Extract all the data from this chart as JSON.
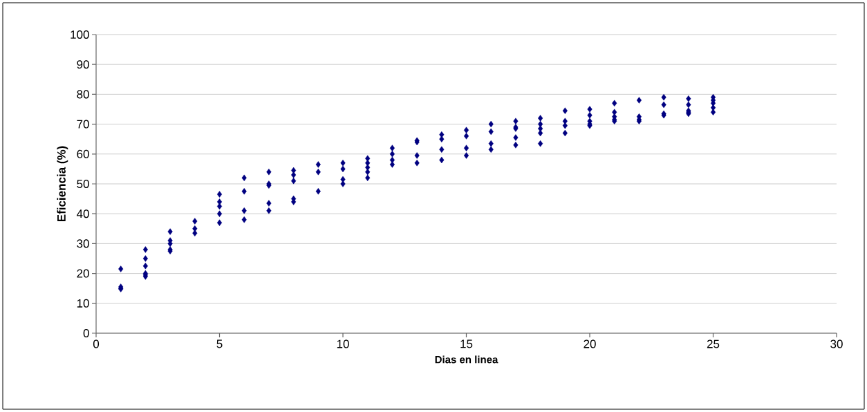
{
  "chart_data": {
    "type": "scatter",
    "xlabel": "Dias en linea",
    "ylabel": "Eficiencia (%)",
    "xlim": [
      0,
      30
    ],
    "xticks": [
      0,
      5,
      10,
      15,
      20,
      25,
      30
    ],
    "ylim": [
      0,
      100
    ],
    "yticks": [
      0,
      10,
      20,
      30,
      40,
      50,
      60,
      70,
      80,
      90,
      100
    ],
    "grid": "y",
    "marker": "diamond",
    "series": [
      {
        "color": "#000080",
        "x": [
          1,
          1,
          1,
          1,
          2,
          2,
          2,
          2,
          2,
          2,
          3,
          3,
          3,
          3,
          3,
          4,
          4,
          4,
          5,
          5,
          5,
          5,
          5,
          6,
          6,
          6,
          6,
          7,
          7,
          7,
          7,
          7,
          8,
          8,
          8,
          8,
          8,
          9,
          9,
          9,
          10,
          10,
          10,
          10,
          11,
          11,
          11,
          11,
          11,
          12,
          12,
          12,
          12,
          13,
          13,
          13,
          13,
          14,
          14,
          14,
          14,
          15,
          15,
          15,
          15,
          16,
          16,
          16,
          16,
          17,
          17,
          17,
          17,
          17,
          18,
          18,
          18,
          18,
          18,
          19,
          19,
          19,
          19,
          20,
          20,
          20,
          20,
          20,
          21,
          21,
          21,
          21,
          21,
          22,
          22,
          22,
          22,
          23,
          23,
          23,
          23,
          24,
          24,
          24,
          24,
          24,
          25,
          25,
          25,
          25,
          25
        ],
        "values": [
          21.5,
          15.5,
          15,
          14.8,
          28,
          25,
          22.5,
          20,
          19.5,
          19,
          34,
          31,
          30,
          28,
          27.5,
          37.5,
          35,
          33.5,
          46.5,
          44,
          42.5,
          40,
          37,
          52,
          47.5,
          41,
          38,
          54,
          50,
          49.5,
          43.5,
          41,
          54.5,
          53,
          51,
          45,
          44,
          56.5,
          54,
          47.5,
          57,
          55,
          51.5,
          50,
          58.5,
          57,
          55.5,
          54,
          52,
          62,
          60,
          58,
          56.5,
          64.5,
          64,
          59.5,
          57,
          66.5,
          65,
          61.5,
          58,
          68,
          66,
          62,
          59.5,
          70,
          67.5,
          63.5,
          61.5,
          71,
          69,
          68.5,
          65.5,
          63,
          72,
          70,
          68.5,
          67,
          63.5,
          74.5,
          71,
          69.5,
          67,
          75,
          73,
          71,
          70,
          69.5,
          77,
          74,
          72.5,
          71.5,
          71,
          78,
          72.5,
          71.5,
          71,
          79,
          76.5,
          73.5,
          73,
          78.5,
          76.5,
          74.5,
          74,
          73.5,
          79,
          78,
          77,
          75.5,
          74
        ]
      }
    ]
  }
}
